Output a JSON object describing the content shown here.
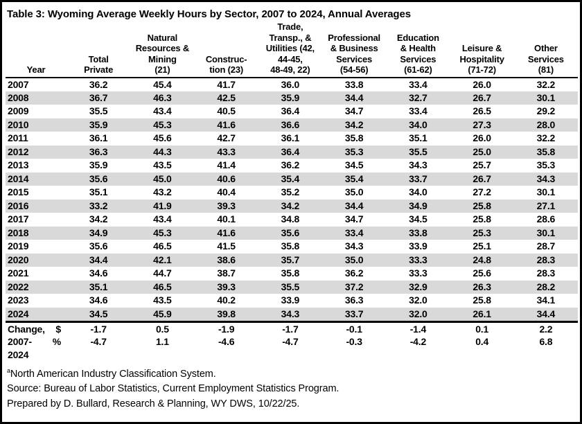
{
  "chart_data": {
    "type": "table",
    "title": "Table 3: Wyoming Average Weekly Hours by Sector, 2007 to 2024, Annual Averages",
    "columns": [
      "Year",
      "Total\nPrivate",
      "Natural\nResources &\nMining\n(21)",
      "Construc-\ntion (23)",
      "Trade,\nTransp., &\nUtilities (42,\n44-45,\n48-49, 22)",
      "Professional\n& Business\nServices\n(54-56)",
      "Education\n& Health\nServices\n(61-62)",
      "Leisure &\nHospitality\n(71-72)",
      "Other\nServices\n(81)"
    ],
    "rows": [
      {
        "year": "2007",
        "values": [
          "36.2",
          "45.4",
          "41.7",
          "36.0",
          "33.8",
          "33.4",
          "26.0",
          "32.2"
        ]
      },
      {
        "year": "2008",
        "values": [
          "36.7",
          "46.3",
          "42.5",
          "35.9",
          "34.4",
          "32.7",
          "26.7",
          "30.1"
        ]
      },
      {
        "year": "2009",
        "values": [
          "35.5",
          "43.4",
          "40.5",
          "36.4",
          "34.7",
          "33.4",
          "26.5",
          "29.2"
        ]
      },
      {
        "year": "2010",
        "values": [
          "35.9",
          "45.3",
          "41.6",
          "36.6",
          "34.2",
          "34.0",
          "27.3",
          "28.0"
        ]
      },
      {
        "year": "2011",
        "values": [
          "36.1",
          "45.6",
          "42.7",
          "36.1",
          "35.8",
          "35.1",
          "26.0",
          "32.2"
        ]
      },
      {
        "year": "2012",
        "values": [
          "36.3",
          "44.3",
          "43.3",
          "36.4",
          "35.3",
          "35.5",
          "25.0",
          "35.8"
        ]
      },
      {
        "year": "2013",
        "values": [
          "35.9",
          "43.5",
          "41.4",
          "36.2",
          "34.5",
          "34.3",
          "25.7",
          "35.3"
        ]
      },
      {
        "year": "2014",
        "values": [
          "35.6",
          "45.0",
          "40.6",
          "35.4",
          "35.4",
          "33.7",
          "26.7",
          "34.3"
        ]
      },
      {
        "year": "2015",
        "values": [
          "35.1",
          "43.2",
          "40.4",
          "35.2",
          "35.0",
          "34.0",
          "27.2",
          "30.1"
        ]
      },
      {
        "year": "2016",
        "values": [
          "33.2",
          "41.9",
          "39.3",
          "34.2",
          "34.4",
          "34.9",
          "25.8",
          "27.1"
        ]
      },
      {
        "year": "2017",
        "values": [
          "34.2",
          "43.4",
          "40.1",
          "34.8",
          "34.7",
          "34.5",
          "25.8",
          "28.6"
        ]
      },
      {
        "year": "2018",
        "values": [
          "34.9",
          "45.3",
          "41.6",
          "35.6",
          "33.4",
          "33.8",
          "25.3",
          "30.1"
        ]
      },
      {
        "year": "2019",
        "values": [
          "35.6",
          "46.5",
          "41.5",
          "35.8",
          "34.3",
          "33.9",
          "25.1",
          "28.7"
        ]
      },
      {
        "year": "2020",
        "values": [
          "34.4",
          "42.1",
          "38.6",
          "35.7",
          "35.0",
          "33.3",
          "24.8",
          "28.3"
        ]
      },
      {
        "year": "2021",
        "values": [
          "34.6",
          "44.7",
          "38.7",
          "35.8",
          "36.2",
          "33.3",
          "25.6",
          "28.3"
        ]
      },
      {
        "year": "2022",
        "values": [
          "35.1",
          "46.5",
          "39.3",
          "35.5",
          "37.2",
          "32.9",
          "26.3",
          "28.2"
        ]
      },
      {
        "year": "2023",
        "values": [
          "34.6",
          "43.5",
          "40.2",
          "33.9",
          "36.3",
          "32.0",
          "25.8",
          "34.1"
        ]
      },
      {
        "year": "2024",
        "values": [
          "34.5",
          "45.9",
          "39.8",
          "34.3",
          "33.7",
          "32.0",
          "26.1",
          "34.4"
        ]
      }
    ],
    "change": {
      "label_lines": [
        "Change,",
        "2007-",
        "2024"
      ],
      "rows": [
        {
          "unit": "$",
          "values": [
            "-1.7",
            "0.5",
            "-1.9",
            "-1.7",
            "-0.1",
            "-1.4",
            "0.1",
            "2.2"
          ]
        },
        {
          "unit": "%",
          "values": [
            "-4.7",
            "1.1",
            "-4.6",
            "-4.7",
            "-0.3",
            "-4.2",
            "0.4",
            "6.8"
          ]
        }
      ]
    },
    "footnotes": {
      "naics_superscript": "a",
      "naics": "North American Industry Classification System.",
      "source": "Source: Bureau of Labor Statistics, Current Employment Statistics Program.",
      "prepared": "Prepared by D. Bullard, Research & Planning, WY DWS, 10/22/25."
    },
    "layout_colors": {
      "stripe": "#D9D9D9",
      "border": "#000000",
      "text": "#000000",
      "background": "#FFFFFF"
    }
  }
}
